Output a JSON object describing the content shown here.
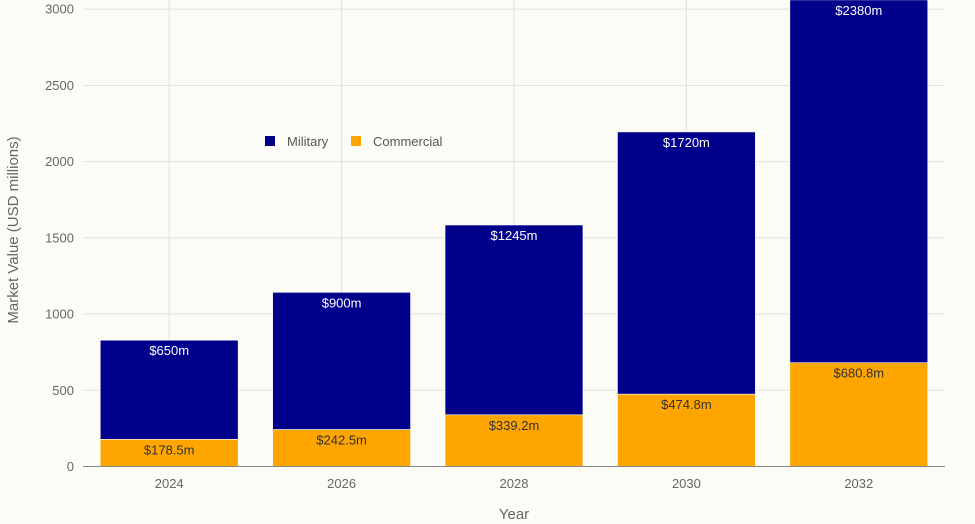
{
  "chart_data": {
    "type": "bar",
    "stacked": true,
    "categories": [
      "2024",
      "2026",
      "2028",
      "2030",
      "2032"
    ],
    "series": [
      {
        "name": "Commercial",
        "color": "#ffa500",
        "values": [
          178.5,
          242.5,
          339.2,
          474.8,
          680.8
        ],
        "labels": [
          "$178.5m",
          "$242.5m",
          "$339.2m",
          "$474.8m",
          "$680.8m"
        ],
        "label_color": "#333333"
      },
      {
        "name": "Military",
        "color": "#00008b",
        "values": [
          650,
          900,
          1245,
          1720,
          2380
        ],
        "labels": [
          "$650m",
          "$900m",
          "$1245m",
          "$1720m",
          "$2380m"
        ],
        "label_color": "#ffffff"
      }
    ],
    "legend_order": [
      "Military",
      "Commercial"
    ],
    "legend_position": "upper-left",
    "xlabel": "Year",
    "ylabel": "Market Value (USD millions)",
    "ylim": [
      0,
      3060
    ],
    "yticks": [
      0,
      500,
      1000,
      1500,
      2000,
      2500,
      3000
    ],
    "grid": true
  }
}
